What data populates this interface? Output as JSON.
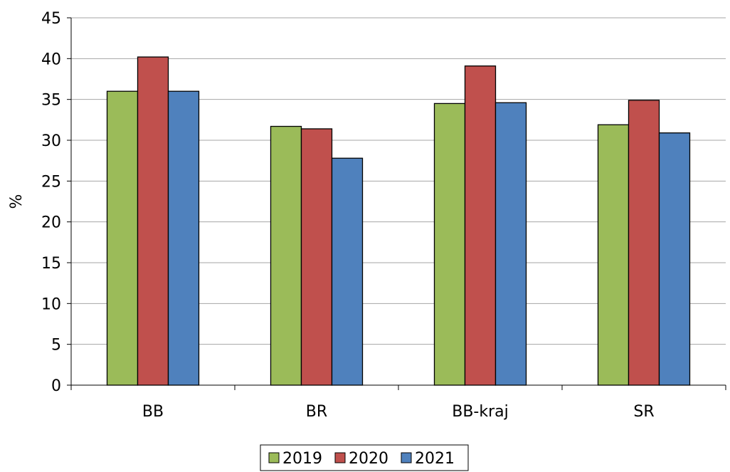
{
  "chart_data": {
    "type": "bar",
    "categories": [
      "BB",
      "BR",
      "BB-kraj",
      "SR"
    ],
    "series": [
      {
        "name": "2019",
        "values": [
          36.0,
          31.7,
          34.5,
          31.9
        ],
        "color": "#9BBB59"
      },
      {
        "name": "2020",
        "values": [
          40.2,
          31.4,
          39.1,
          34.9
        ],
        "color": "#C0504D"
      },
      {
        "name": "2021",
        "values": [
          36.0,
          27.8,
          34.6,
          30.9
        ],
        "color": "#4F81BD"
      }
    ],
    "title": "",
    "xlabel": "",
    "ylabel": "%",
    "ylim": [
      0,
      45
    ],
    "yticks": [
      0,
      5,
      10,
      15,
      20,
      25,
      30,
      35,
      40,
      45
    ],
    "grid": true,
    "legend_position": "bottom"
  }
}
